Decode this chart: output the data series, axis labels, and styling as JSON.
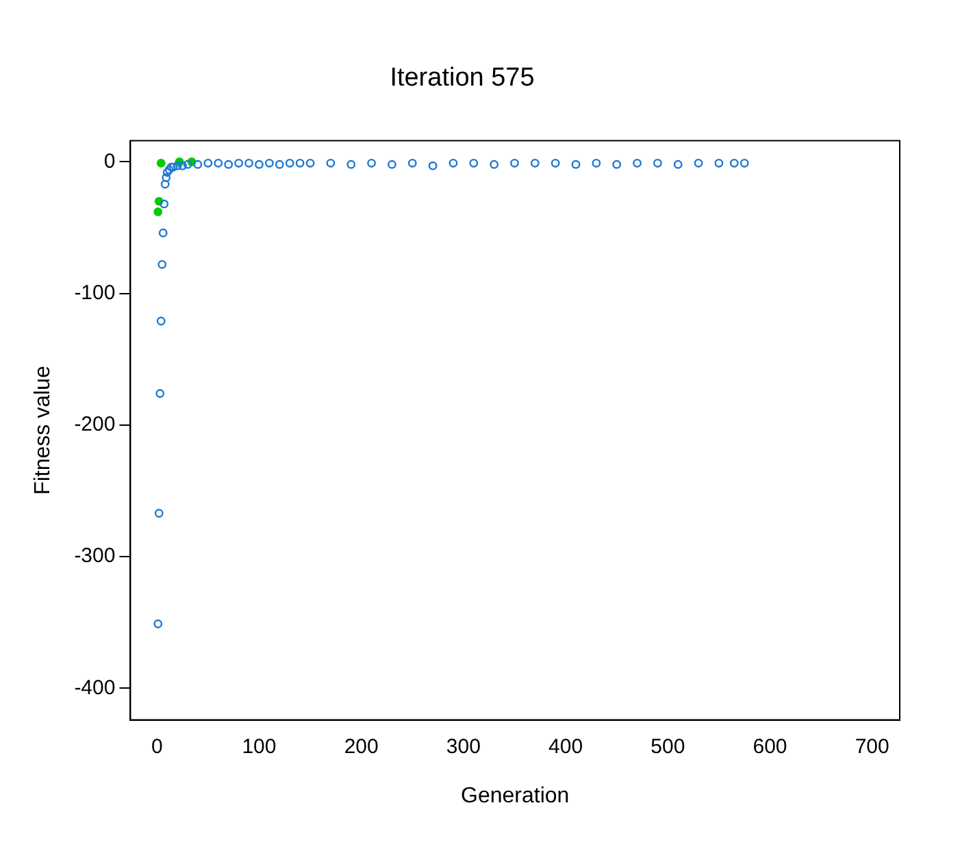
{
  "chart_data": {
    "type": "scatter",
    "title": "Iteration 575",
    "xlabel": "Generation",
    "ylabel": "Fitness value",
    "series": [
      {
        "color": "#1e78d0",
        "x": [
          1,
          2,
          3,
          4,
          5,
          6,
          7,
          8,
          9,
          10,
          12,
          14,
          16,
          20,
          25,
          30,
          40,
          50,
          60,
          70,
          80,
          90,
          100,
          110,
          120,
          130,
          140,
          150,
          170,
          190,
          210,
          230,
          250,
          270,
          290,
          310,
          330,
          350,
          370,
          390,
          410,
          430,
          450,
          470,
          490,
          510,
          530,
          550,
          565,
          575
        ],
        "values": [
          -351,
          -267,
          -176,
          -121,
          -78,
          -54,
          -32,
          -17,
          -12,
          -8,
          -6,
          -4,
          -4,
          -3,
          -3,
          -2,
          -2,
          -1,
          -1,
          -2,
          -1,
          -1,
          -2,
          -1,
          -2,
          -1,
          -1,
          -1,
          -1,
          -2,
          -1,
          -2,
          -1,
          -3,
          -1,
          -1,
          -2,
          -1,
          -1,
          -1,
          -2,
          -1,
          -2,
          -1,
          -1,
          -2,
          -1,
          -1,
          -1,
          -1
        ]
      },
      {
        "color": "#00cd00",
        "x": [
          1,
          2,
          4,
          22,
          34
        ],
        "values": [
          -38,
          -30,
          -1,
          0,
          0
        ]
      }
    ],
    "xlim": [
      -26,
      727
    ],
    "xticks": [
      0,
      100,
      200,
      300,
      400,
      500,
      600,
      700
    ],
    "ylim": [
      -424,
      16
    ],
    "yticks": [
      0,
      -100,
      -200,
      -300,
      -400
    ],
    "grid": false,
    "legend": false,
    "marker": "circle"
  }
}
